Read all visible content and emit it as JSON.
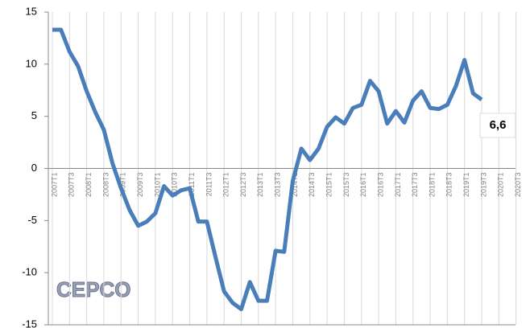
{
  "chart_data": {
    "type": "line",
    "categories": [
      "2007T1",
      null,
      "2007T3",
      null,
      "2008T1",
      null,
      "2008T3",
      null,
      "2009T1",
      null,
      "2009T3",
      null,
      "2010T1",
      null,
      "2010T3",
      null,
      "2011T1",
      null,
      "2011T3",
      null,
      "2012T1",
      null,
      "2012T3",
      null,
      "2013T1",
      null,
      "2013T3",
      null,
      "2014T1",
      null,
      "2014T3",
      null,
      "2015T1",
      null,
      "2015T3",
      null,
      "2016T1",
      null,
      "2016T3",
      null,
      "2017T1",
      null,
      "2017T3",
      null,
      "2018T1",
      null,
      "2018T3",
      null,
      "2019T1",
      null,
      "2019T3",
      null,
      "2020T1",
      null,
      "2020T3",
      null
    ],
    "series": [
      {
        "name": null,
        "color": "#4a7ebb",
        "values": [
          13.3,
          13.3,
          11.2,
          9.8,
          7.4,
          5.4,
          3.7,
          0.5,
          -1.9,
          -4.0,
          -5.5,
          -5.1,
          -4.3,
          -1.7,
          -2.6,
          -2.1,
          -1.9,
          -5.1,
          -5.1,
          -8.5,
          -11.8,
          -12.9,
          -13.5,
          -10.9,
          -12.7,
          -12.7,
          -7.9,
          -8.0,
          -1.2,
          1.9,
          0.8,
          1.9,
          4.0,
          4.9,
          4.3,
          5.8,
          6.1,
          8.4,
          7.4,
          4.3,
          5.5,
          4.4,
          6.5,
          7.4,
          5.8,
          5.7,
          6.1,
          7.9,
          10.4,
          7.2,
          6.6,
          null,
          null,
          null,
          null,
          null
        ]
      }
    ],
    "annotation": "6,6",
    "logo": "CEPCO",
    "ylim": [
      -15,
      15
    ],
    "yticks": [
      -15,
      -10,
      -5,
      0,
      5,
      10,
      15
    ],
    "grid": true
  }
}
